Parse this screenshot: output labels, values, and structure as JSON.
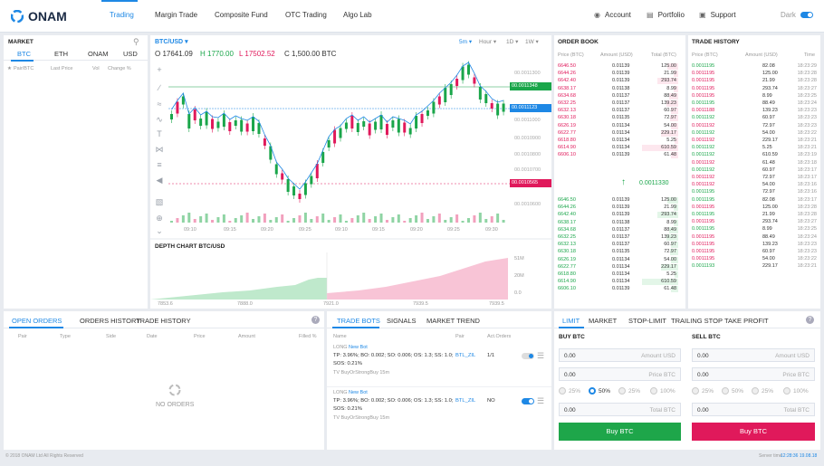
{
  "app": {
    "logo": "ONAM"
  },
  "nav": {
    "items": [
      "Trading",
      "Margin Trade",
      "Composite Fund",
      "OTC Trading",
      "Algo Lab"
    ],
    "account": "Account",
    "portfolio": "Portfolio",
    "support": "Support",
    "theme": "Dark"
  },
  "market": {
    "title": "MARKET",
    "tabs": [
      "BTC",
      "ETH",
      "ONAM",
      "USD"
    ],
    "cols": [
      "Pair/BTC",
      "Last Price",
      "Vol",
      "Change %"
    ]
  },
  "chart": {
    "pair": "BTC/USD",
    "ohlc": {
      "o": "O 17641.09",
      "h": "H 1770.00",
      "l": "L 17502.52",
      "c": "C 1,500.00 BTC"
    },
    "controls": [
      "5m",
      "Hour",
      "1D",
      "1W"
    ],
    "price_labels": [
      "00.0011300",
      "00.0011348",
      "00.0011123",
      "00.0011000",
      "00.0010900",
      "00.0010800",
      "00.0010700",
      "00.0010565",
      "00.0010600"
    ],
    "time_labels": [
      "09:10",
      "09:15",
      "09:20",
      "09:25",
      "09:10",
      "09:15",
      "09:20",
      "09:25",
      "09:30"
    ]
  },
  "depth": {
    "title": "DEPTH CHART  BTC/USD",
    "x_labels": [
      "7853.6",
      "7888.0",
      "7921.0",
      "7939.5",
      "7939.5"
    ],
    "y_labels": [
      "51M",
      "20M",
      "0.0"
    ]
  },
  "orderbook": {
    "title": "ORDER BOOK",
    "cols": [
      "Price (BTC)",
      "Amount (USD)",
      "Total (BTC)"
    ],
    "asks": [
      [
        "6646.50",
        "0.01139",
        "125.00"
      ],
      [
        "6644.26",
        "0.01139",
        "21.99"
      ],
      [
        "6642.40",
        "0.01139",
        "293.74"
      ],
      [
        "6638.17",
        "0.01138",
        "8.99"
      ],
      [
        "6634.68",
        "0.01137",
        "88.49"
      ],
      [
        "6632.25",
        "0.01137",
        "139.23"
      ],
      [
        "6632.13",
        "0.01137",
        "60.97"
      ],
      [
        "6630.18",
        "0.01135",
        "72.97"
      ],
      [
        "6626.19",
        "0.01134",
        "54.00"
      ],
      [
        "6622.77",
        "0.01134",
        "229.17"
      ],
      [
        "6618.80",
        "0.01134",
        "5.25"
      ],
      [
        "6614.90",
        "0.01134",
        "610.59"
      ],
      [
        "6606.10",
        "0.01139",
        "61.48"
      ]
    ],
    "mid": "0.0011330",
    "bids": [
      [
        "6646.50",
        "0.01139",
        "125.00"
      ],
      [
        "6644.26",
        "0.01139",
        "21.99"
      ],
      [
        "6642.40",
        "0.01139",
        "293.74"
      ],
      [
        "6638.17",
        "0.01138",
        "8.99"
      ],
      [
        "6634.68",
        "0.01137",
        "88.49"
      ],
      [
        "6632.25",
        "0.01137",
        "139.23"
      ],
      [
        "6632.13",
        "0.01137",
        "60.97"
      ],
      [
        "6630.18",
        "0.01135",
        "72.97"
      ],
      [
        "6626.19",
        "0.01134",
        "54.00"
      ],
      [
        "6622.77",
        "0.01134",
        "229.17"
      ],
      [
        "6618.80",
        "0.01134",
        "5.25"
      ],
      [
        "6614.90",
        "0.01134",
        "610.59"
      ],
      [
        "6606.10",
        "0.01139",
        "61.48"
      ]
    ]
  },
  "history": {
    "title": "TRADE HISTORY",
    "cols": [
      "Price (BTC)",
      "Amount (USD)",
      "Time"
    ],
    "rows": [
      [
        "0.0011195",
        "82.08",
        "18:23:29"
      ],
      [
        "0.0011195",
        "125.00",
        "18:23:28"
      ],
      [
        "0.0011195",
        "21.99",
        "18:23:28"
      ],
      [
        "0.0011195",
        "293.74",
        "18:23:27"
      ],
      [
        "0.0011195",
        "8.99",
        "18:23:25"
      ],
      [
        "0.0011195",
        "88.49",
        "18:23:24"
      ],
      [
        "0.0011188",
        "139.23",
        "18:23:23"
      ],
      [
        "0.0011192",
        "60.97",
        "18:23:23"
      ],
      [
        "0.0011192",
        "72.97",
        "18:23:23"
      ],
      [
        "0.0011192",
        "54.00",
        "18:23:22"
      ],
      [
        "0.0011192",
        "229.17",
        "18:23:21"
      ],
      [
        "0.0011192",
        "5.25",
        "18:23:21"
      ],
      [
        "0.0011192",
        "610.59",
        "18:23:19"
      ],
      [
        "0.0011192",
        "61.48",
        "18:23:18"
      ],
      [
        "0.0011192",
        "60.97",
        "18:23:17"
      ],
      [
        "0.0011192",
        "72.97",
        "18:23:17"
      ],
      [
        "0.0011192",
        "54.00",
        "18:23:16"
      ],
      [
        "0.0011195",
        "72.97",
        "18:23:16"
      ],
      [
        "0.0011195",
        "82.08",
        "18:23:17"
      ],
      [
        "0.0011195",
        "125.00",
        "18:23:28"
      ],
      [
        "0.0011195",
        "21.99",
        "18:23:28"
      ],
      [
        "0.0011195",
        "293.74",
        "18:23:27"
      ],
      [
        "0.0011195",
        "8.99",
        "18:23:25"
      ],
      [
        "0.0011195",
        "88.49",
        "18:23:24"
      ],
      [
        "0.0011195",
        "139.23",
        "18:23:23"
      ],
      [
        "0.0011195",
        "60.97",
        "18:23:23"
      ],
      [
        "0.0011195",
        "54.00",
        "18:23:22"
      ],
      [
        "0.0011193",
        "229.17",
        "18:23:21"
      ]
    ]
  },
  "orders": {
    "tabs": [
      "OPEN ORDERS",
      "ORDERS HISTORY",
      "TRADE HISTORY"
    ],
    "cols": [
      "Pair",
      "Type",
      "Side",
      "Date",
      "Price",
      "Amount",
      "Filled %"
    ],
    "empty": "NO ORDERS"
  },
  "bots": {
    "tabs": [
      "TRADE BOTS",
      "SIGNALS",
      "MARKET TREND"
    ],
    "cols": [
      "Name",
      "Pair",
      "Act.Orders"
    ],
    "items": [
      {
        "side": "LONG",
        "name": "New Bot",
        "params": "TP: 3.96%; BO: 0.002; SO: 0.006; OS: 1.3; SS: 1.0;",
        "sos": "SOS: 0.21%",
        "signal": "TV BuyOrStrongBuy 15m",
        "pair": "BTL_ZIL",
        "orders": "1/1"
      },
      {
        "side": "LONG",
        "name": "New Bot",
        "params": "TP: 3.96%; BO: 0.002; SO: 0.006; OS: 1.3; SS: 1.0;",
        "sos": "SOS: 0.21%",
        "signal": "TV BuyOrStrongBuy 15m",
        "pair": "BTL_ZIL",
        "orders": "NO"
      }
    ]
  },
  "trade": {
    "tabs": [
      "LIMIT",
      "MARKET",
      "STOP-LIMIT",
      "TRAILING STOP",
      "TAKE PROFIT"
    ],
    "buy_title": "BUY BTC",
    "sell_title": "SELL BTC",
    "amount_unit": "Amount USD",
    "price_unit": "Price BTC",
    "total_unit": "Total BTC",
    "zero": "0.00",
    "pcts": [
      "25%",
      "50%",
      "25%",
      "100%"
    ],
    "buy_btn": "Buy BTC",
    "sell_btn": "Buy BTC"
  },
  "footer": {
    "copy": "© 2018 ONAM Ltd All Rights Reserved",
    "server_label": "Server time",
    "server_time": "12:28:36 19.08.18"
  },
  "colors": {
    "accent": "#1e88e5",
    "buy": "#1ea64a",
    "sell": "#e0195b"
  }
}
